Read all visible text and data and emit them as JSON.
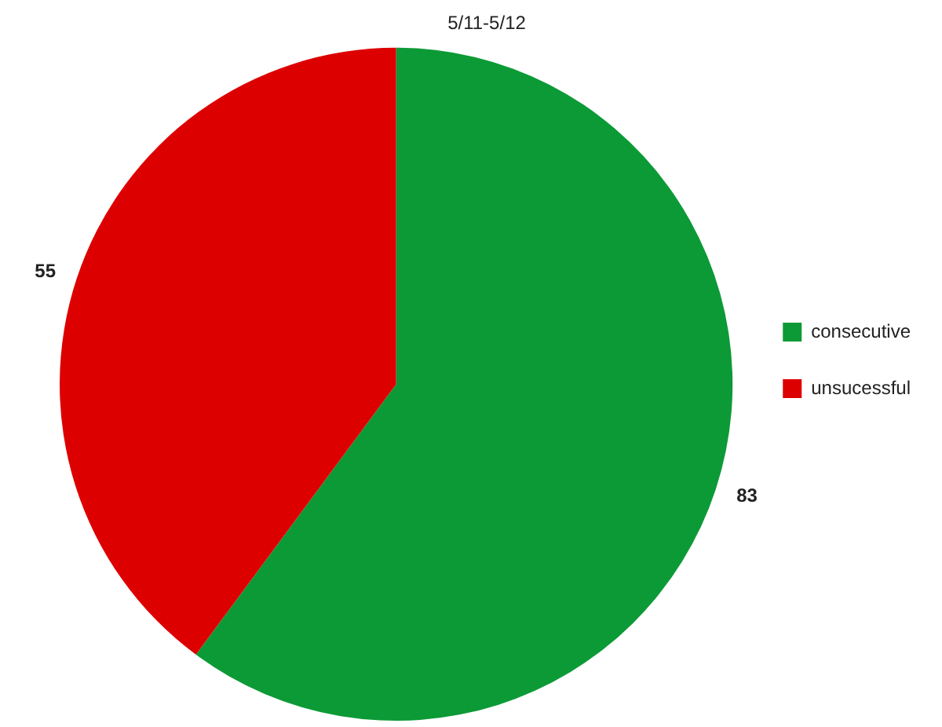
{
  "chart_data": {
    "type": "pie",
    "title": "5/11-5/12",
    "categories": [
      "consecutive",
      "unsucessful"
    ],
    "values": [
      83,
      55
    ],
    "colors": [
      "#0c9a36",
      "#dd0000"
    ],
    "data_labels": true,
    "legend": "right"
  }
}
